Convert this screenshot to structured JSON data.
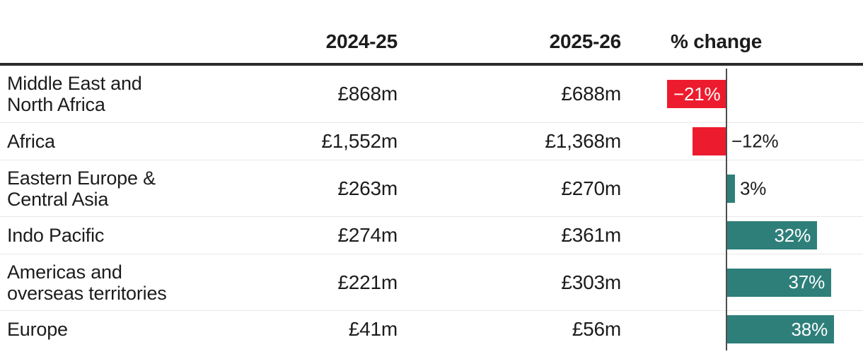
{
  "table": {
    "columns": {
      "region": "",
      "y2024": "2024-25",
      "y2025": "2025-26",
      "change": "% change"
    },
    "rows": [
      {
        "region_lines": [
          "Middle East and",
          "North Africa"
        ],
        "y2024": "£868m",
        "y2025": "£688m",
        "change": -21,
        "change_label": "−21%",
        "change_label_placement": "inside-left"
      },
      {
        "region_lines": [
          "Africa"
        ],
        "y2024": "£1,552m",
        "y2025": "£1,368m",
        "change": -12,
        "change_label": "−12%",
        "change_label_placement": "outside-right"
      },
      {
        "region_lines": [
          "Eastern Europe &",
          "Central Asia"
        ],
        "y2024": "£263m",
        "y2025": "£270m",
        "change": 3,
        "change_label": "3%",
        "change_label_placement": "outside-right"
      },
      {
        "region_lines": [
          "Indo Pacific"
        ],
        "y2024": "£274m",
        "y2025": "£361m",
        "change": 32,
        "change_label": "32%",
        "change_label_placement": "inside-right"
      },
      {
        "region_lines": [
          "Americas and",
          "overseas territories"
        ],
        "y2024": "£221m",
        "y2025": "£303m",
        "change": 37,
        "change_label": "37%",
        "change_label_placement": "inside-right"
      },
      {
        "region_lines": [
          "Europe"
        ],
        "y2024": "£41m",
        "y2025": "£56m",
        "change": 38,
        "change_label": "38%",
        "change_label_placement": "inside-right"
      }
    ]
  },
  "chart_data": {
    "type": "bar",
    "orientation": "horizontal",
    "title": "",
    "categories": [
      "Middle East and North Africa",
      "Africa",
      "Eastern Europe & Central Asia",
      "Indo Pacific",
      "Americas and overseas territories",
      "Europe"
    ],
    "series": [
      {
        "name": "2024-25",
        "unit": "£m",
        "values": [
          868,
          1552,
          263,
          274,
          221,
          41
        ]
      },
      {
        "name": "2025-26",
        "unit": "£m",
        "values": [
          688,
          1368,
          270,
          361,
          303,
          56
        ]
      },
      {
        "name": "% change",
        "unit": "%",
        "values": [
          -21,
          -12,
          3,
          32,
          37,
          38
        ]
      }
    ],
    "plotted_series": "% change",
    "xlim": [
      -37,
      48
    ],
    "zero_baseline": true,
    "grid": false,
    "legend": false,
    "bar_labels": [
      "−21%",
      "−12%",
      "3%",
      "32%",
      "37%",
      "38%"
    ]
  },
  "colors": {
    "negative_bar": "#ed1b2e",
    "positive_bar": "#2e7f7a",
    "header_rule": "#2b2b2b",
    "row_separator": "#e8e8e8",
    "zero_axis": "#4d4d4d",
    "text": "#1c1c1c",
    "bar_label_inside": "#ffffff",
    "background": "#ffffff"
  }
}
